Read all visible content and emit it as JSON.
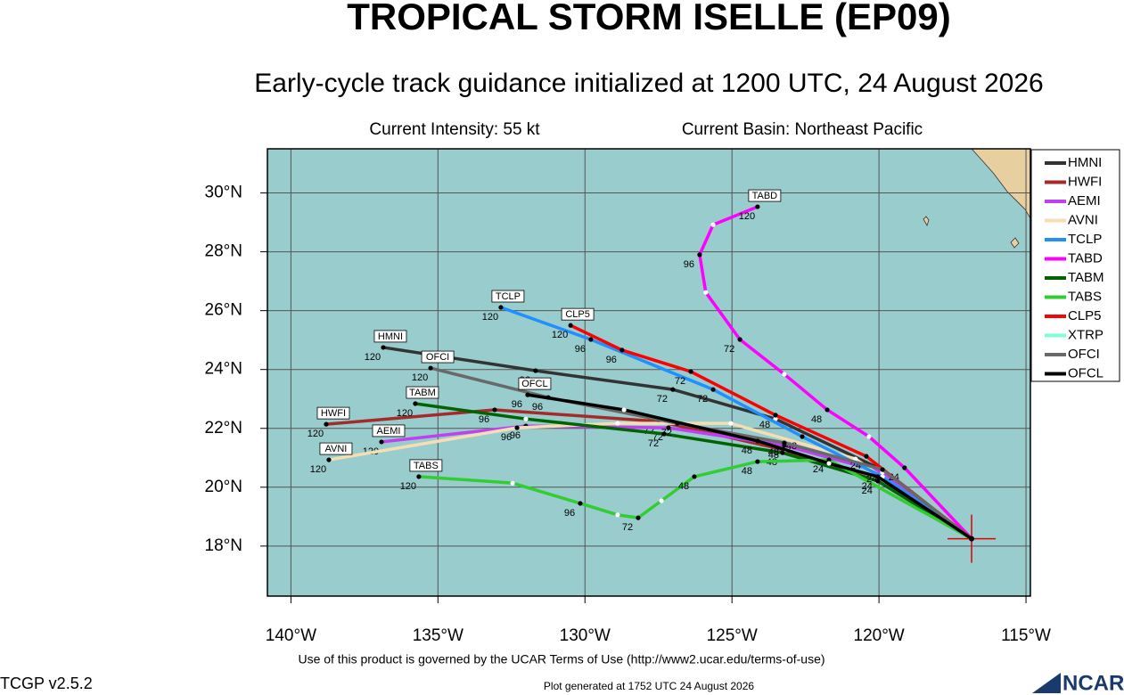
{
  "chart_data": {
    "type": "track",
    "title": "TROPICAL STORM ISELLE (EP09)",
    "subtitle": "Early-cycle track guidance initialized at 1200 UTC, 24 August 2026",
    "intensity": "Current Intensity: 55 kt",
    "basin": "Current Basin: Northeast Pacific",
    "footer": "Use of this product is governed by the UCAR Terms of Use (http://www2.ucar.edu/terms-of-use)",
    "generated": "Plot generated at 1752 UTC   24 August 2026",
    "version": "TCGP v2.5.2",
    "logo": "NCAR",
    "xlim": [
      -140.8,
      -114.85
    ],
    "ylim": [
      16.3,
      31.5
    ],
    "xticks": [
      {
        "value": -140,
        "label": "140°W"
      },
      {
        "value": -135,
        "label": "135°W"
      },
      {
        "value": -130,
        "label": "130°W"
      },
      {
        "value": -125,
        "label": "125°W"
      },
      {
        "value": -120,
        "label": "120°W"
      },
      {
        "value": -115,
        "label": "115°W"
      }
    ],
    "yticks": [
      {
        "value": 18,
        "label": "18°N"
      },
      {
        "value": 20,
        "label": "20°N"
      },
      {
        "value": 22,
        "label": "22°N"
      },
      {
        "value": 24,
        "label": "24°N"
      },
      {
        "value": 26,
        "label": "26°N"
      },
      {
        "value": 28,
        "label": "28°N"
      },
      {
        "value": 30,
        "label": "30°N"
      }
    ],
    "grid": true,
    "start": {
      "lon": -116.85,
      "lat": 18.25
    },
    "series": [
      {
        "name": "HMNI",
        "color": "#333333",
        "points": [
          {
            "lon": -120.04,
            "lat": 20.66
          },
          {
            "lon": -123.52,
            "lat": 22.32
          },
          {
            "lon": -127.01,
            "lat": 23.32,
            "hour": 72
          },
          {
            "lon": -131.68,
            "lat": 23.96,
            "hour": 96
          },
          {
            "lon": -136.86,
            "lat": 24.75,
            "hour": 120
          }
        ]
      },
      {
        "name": "HWFI",
        "color": "#a52a2a",
        "points": [
          {
            "lon": -120.04,
            "lat": 20.21
          },
          {
            "lon": -123.22,
            "lat": 21.27
          },
          {
            "lon": -127.46,
            "lat": 22.23,
            "hour": 72
          },
          {
            "lon": -133.07,
            "lat": 22.63,
            "hour": 96
          },
          {
            "lon": -138.8,
            "lat": 22.14,
            "hour": 120
          }
        ]
      },
      {
        "name": "AEMI",
        "color": "#c040f0",
        "points": [
          {
            "lon": -119.88,
            "lat": 20.51
          },
          {
            "lon": -123.22,
            "lat": 21.42,
            "hour": 48
          },
          {
            "lon": -127.16,
            "lat": 22.02,
            "hour": 72
          },
          {
            "lon": -132.01,
            "lat": 22.08,
            "hour": 96
          },
          {
            "lon": -136.92,
            "lat": 21.54,
            "hour": 120
          }
        ]
      },
      {
        "name": "AVNI",
        "color": "#f5deb3",
        "points": [
          {
            "lon": -120.8,
            "lat": 20.96
          },
          {
            "lon": -125.04,
            "lat": 22.17
          },
          {
            "lon": -128.89,
            "lat": 22.17
          },
          {
            "lon": -132.31,
            "lat": 22.02,
            "hour": 96
          },
          {
            "lon": -138.71,
            "lat": 20.93,
            "hour": 120
          }
        ]
      },
      {
        "name": "TCLP",
        "color": "#1e90ff",
        "points": [
          {
            "lon": -119.88,
            "lat": 20.36
          },
          {
            "lon": -122.61,
            "lat": 21.72,
            "hour": 48
          },
          {
            "lon": -125.64,
            "lat": 23.32,
            "hour": 72
          },
          {
            "lon": -129.8,
            "lat": 25.02,
            "hour": 96
          },
          {
            "lon": -132.86,
            "lat": 26.11,
            "hour": 120
          }
        ]
      },
      {
        "name": "TABD",
        "color": "#ff00ff",
        "points": [
          {
            "lon": -119.13,
            "lat": 20.66,
            "hour": 24
          },
          {
            "lon": -120.34,
            "lat": 21.72
          },
          {
            "lon": -121.76,
            "lat": 22.63,
            "hour": 48
          },
          {
            "lon": -123.22,
            "lat": 23.84
          },
          {
            "lon": -124.73,
            "lat": 25.02,
            "hour": 72
          },
          {
            "lon": -125.89,
            "lat": 26.62
          },
          {
            "lon": -126.1,
            "lat": 27.9,
            "hour": 96
          },
          {
            "lon": -125.64,
            "lat": 28.92
          },
          {
            "lon": -124.13,
            "lat": 29.53,
            "hour": 120
          }
        ]
      },
      {
        "name": "TABM",
        "color": "#006400",
        "points": [
          {
            "lon": -120.04,
            "lat": 20.21,
            "hour": 24
          },
          {
            "lon": -123.28,
            "lat": 21.17,
            "hour": 48
          },
          {
            "lon": -127.31,
            "lat": 21.81,
            "hour": 72
          },
          {
            "lon": -132.01,
            "lat": 22.32
          },
          {
            "lon": -135.77,
            "lat": 22.84,
            "hour": 120
          }
        ]
      },
      {
        "name": "TABS",
        "color": "#32cd32",
        "points": [
          {
            "lon": -121.7,
            "lat": 20.93,
            "hour": 24
          },
          {
            "lon": -124.13,
            "lat": 20.87,
            "hour": 48
          },
          {
            "lon": -126.28,
            "lat": 20.36,
            "hour": 48
          },
          {
            "lon": -127.4,
            "lat": 19.54
          },
          {
            "lon": -128.19,
            "lat": 18.96,
            "hour": 72
          },
          {
            "lon": -128.89,
            "lat": 19.06
          },
          {
            "lon": -130.16,
            "lat": 19.45,
            "hour": 96
          },
          {
            "lon": -132.46,
            "lat": 20.14
          },
          {
            "lon": -135.65,
            "lat": 20.36,
            "hour": 120
          }
        ]
      },
      {
        "name": "CLP5",
        "color": "#ff0000",
        "points": [
          {
            "lon": -120.43,
            "lat": 21.05,
            "hour": 24
          },
          {
            "lon": -123.52,
            "lat": 22.45,
            "hour": 48
          },
          {
            "lon": -126.4,
            "lat": 23.93,
            "hour": 72
          },
          {
            "lon": -128.74,
            "lat": 24.66,
            "hour": 96
          },
          {
            "lon": -130.49,
            "lat": 25.5,
            "hour": 120
          }
        ]
      },
      {
        "name": "XTRP",
        "color": "#7fffd4",
        "points": []
      },
      {
        "name": "OFCI",
        "color": "#696969",
        "points": [
          {
            "lon": -119.88,
            "lat": 20.6,
            "hour": 24
          },
          {
            "lon": -123.22,
            "lat": 21.51,
            "hour": 48
          },
          {
            "lon": -126.86,
            "lat": 22.17,
            "hour": 72
          },
          {
            "lon": -131.25,
            "lat": 23.05,
            "hour": 96
          },
          {
            "lon": -135.25,
            "lat": 24.05,
            "hour": 120
          }
        ]
      },
      {
        "name": "OFCL",
        "color": "#000000",
        "points": [
          {
            "lon": -120.04,
            "lat": 20.36,
            "hour": 24
          },
          {
            "lon": -121.7,
            "lat": 20.81
          },
          {
            "lon": -124.13,
            "lat": 21.57,
            "hour": 48
          },
          {
            "lon": -128.67,
            "lat": 22.63
          },
          {
            "lon": -131.95,
            "lat": 23.14,
            "hour": 96
          }
        ]
      }
    ]
  }
}
